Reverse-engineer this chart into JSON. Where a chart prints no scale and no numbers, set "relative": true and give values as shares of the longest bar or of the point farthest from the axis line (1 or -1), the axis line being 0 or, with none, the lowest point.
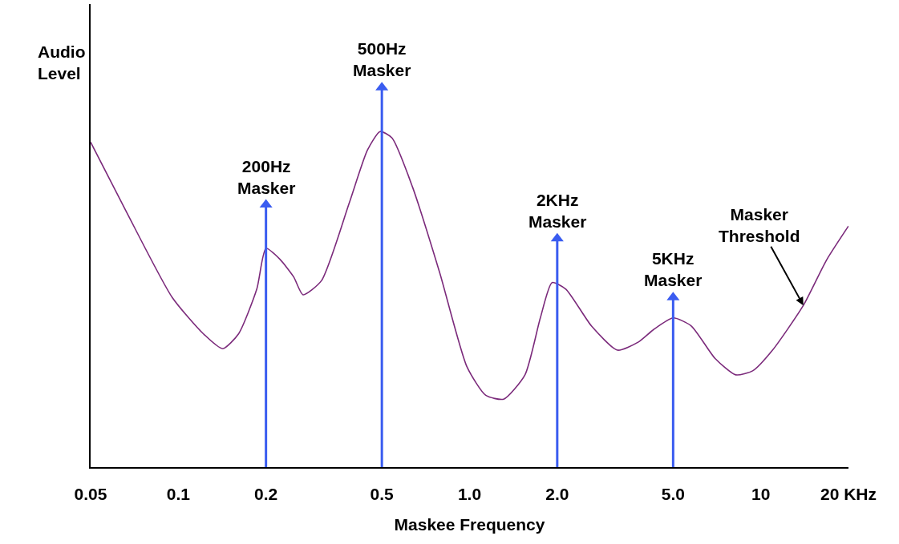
{
  "chart_data": {
    "type": "line",
    "relative": true,
    "log": "x",
    "xlabel": "Maskee Frequency",
    "ylabel": "Audio Level",
    "xlim": [
      0.05,
      20
    ],
    "xticks": [
      0.05,
      0.1,
      0.2,
      0.5,
      {
        "value": 1,
        "label": "1.0"
      },
      {
        "value": 2,
        "label": "2.0"
      },
      {
        "value": 5,
        "label": "5.0"
      },
      10,
      {
        "value": 20,
        "label": "20 KHz"
      }
    ],
    "legend": false,
    "marker": "none",
    "line_style": "solid",
    "series": [
      {
        "name": "Masker Threshold",
        "color": "#7b2a7b",
        "x": [
          0.05,
          0.0664,
          0.0953,
          0.122,
          0.142,
          0.161,
          0.186,
          0.2,
          0.223,
          0.249,
          0.268,
          0.31,
          0.386,
          0.446,
          0.493,
          0.542,
          0.637,
          0.79,
          0.98,
          1.137,
          1.31,
          1.55,
          1.75,
          1.92,
          2.14,
          2.62,
          3.22,
          3.79,
          4.28,
          5,
          5.77,
          6.97,
          8.2,
          9.4,
          10.97,
          14.0,
          16.8,
          20
        ],
        "values": [
          0.856,
          0.672,
          0.447,
          0.351,
          0.312,
          0.351,
          0.469,
          0.576,
          0.548,
          0.501,
          0.454,
          0.491,
          0.695,
          0.835,
          0.884,
          0.867,
          0.738,
          0.512,
          0.264,
          0.189,
          0.179,
          0.243,
          0.393,
          0.486,
          0.469,
          0.372,
          0.308,
          0.329,
          0.362,
          0.393,
          0.372,
          0.286,
          0.243,
          0.254,
          0.308,
          0.426,
          0.545,
          0.635
        ]
      },
      {
        "type": "lollipop",
        "color": "#3a5cf0",
        "marker": "triangle",
        "x": [
          0.2,
          0.5,
          2,
          5
        ],
        "values": [
          0.691,
          1,
          0.602,
          0.447
        ]
      }
    ],
    "annotations": [
      {
        "text": "200Hz\nMasker",
        "x": 0.2,
        "y": 0.691
      },
      {
        "text": "500Hz\nMasker",
        "x": 0.5,
        "y": 1
      },
      {
        "text": "2KHz\nMasker",
        "x": 2,
        "y": 0.602
      },
      {
        "text": "5KHz\nMasker",
        "x": 5,
        "y": 0.447
      }
    ]
  }
}
